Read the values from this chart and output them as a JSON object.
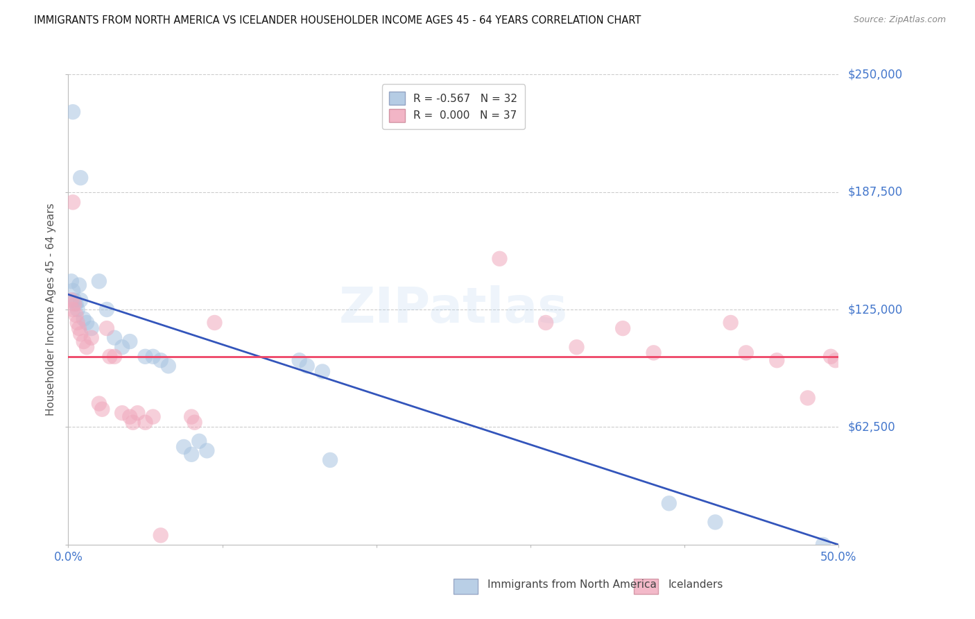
{
  "title": "IMMIGRANTS FROM NORTH AMERICA VS ICELANDER HOUSEHOLDER INCOME AGES 45 - 64 YEARS CORRELATION CHART",
  "source": "Source: ZipAtlas.com",
  "ylabel": "Householder Income Ages 45 - 64 years",
  "xlim": [
    0.0,
    0.5
  ],
  "ylim": [
    0,
    250000
  ],
  "yticks": [
    0,
    62500,
    125000,
    187500,
    250000
  ],
  "ytick_labels_right": [
    "",
    "$62,500",
    "$125,000",
    "$187,500",
    "$250,000"
  ],
  "xtick_positions": [
    0.0,
    0.1,
    0.2,
    0.3,
    0.4,
    0.5
  ],
  "xtick_labels": [
    "0.0%",
    "",
    "",
    "",
    "",
    "50.0%"
  ],
  "blue_r": -0.567,
  "blue_n": 32,
  "pink_r": 0.0,
  "pink_n": 37,
  "blue_dot_color": "#a8c4e0",
  "pink_dot_color": "#f0a8bc",
  "blue_line_color": "#3355bb",
  "pink_line_color": "#ee4466",
  "label_color": "#4477cc",
  "watermark": "ZIPatlas",
  "blue_points": [
    [
      0.003,
      230000
    ],
    [
      0.008,
      195000
    ],
    [
      0.002,
      140000
    ],
    [
      0.003,
      135000
    ],
    [
      0.004,
      130000
    ],
    [
      0.005,
      128000
    ],
    [
      0.006,
      125000
    ],
    [
      0.007,
      138000
    ],
    [
      0.008,
      130000
    ],
    [
      0.01,
      120000
    ],
    [
      0.012,
      118000
    ],
    [
      0.015,
      115000
    ],
    [
      0.02,
      140000
    ],
    [
      0.025,
      125000
    ],
    [
      0.03,
      110000
    ],
    [
      0.035,
      105000
    ],
    [
      0.04,
      108000
    ],
    [
      0.05,
      100000
    ],
    [
      0.055,
      100000
    ],
    [
      0.06,
      98000
    ],
    [
      0.065,
      95000
    ],
    [
      0.075,
      52000
    ],
    [
      0.08,
      48000
    ],
    [
      0.085,
      55000
    ],
    [
      0.09,
      50000
    ],
    [
      0.15,
      98000
    ],
    [
      0.155,
      95000
    ],
    [
      0.165,
      92000
    ],
    [
      0.17,
      45000
    ],
    [
      0.39,
      22000
    ],
    [
      0.42,
      12000
    ],
    [
      0.49,
      0
    ]
  ],
  "pink_points": [
    [
      0.003,
      182000
    ],
    [
      0.002,
      130000
    ],
    [
      0.003,
      125000
    ],
    [
      0.004,
      128000
    ],
    [
      0.005,
      122000
    ],
    [
      0.006,
      118000
    ],
    [
      0.007,
      115000
    ],
    [
      0.008,
      112000
    ],
    [
      0.01,
      108000
    ],
    [
      0.012,
      105000
    ],
    [
      0.015,
      110000
    ],
    [
      0.02,
      75000
    ],
    [
      0.022,
      72000
    ],
    [
      0.025,
      115000
    ],
    [
      0.027,
      100000
    ],
    [
      0.03,
      100000
    ],
    [
      0.035,
      70000
    ],
    [
      0.04,
      68000
    ],
    [
      0.042,
      65000
    ],
    [
      0.045,
      70000
    ],
    [
      0.05,
      65000
    ],
    [
      0.055,
      68000
    ],
    [
      0.06,
      5000
    ],
    [
      0.08,
      68000
    ],
    [
      0.082,
      65000
    ],
    [
      0.28,
      152000
    ],
    [
      0.31,
      118000
    ],
    [
      0.33,
      105000
    ],
    [
      0.36,
      115000
    ],
    [
      0.38,
      102000
    ],
    [
      0.43,
      118000
    ],
    [
      0.44,
      102000
    ],
    [
      0.46,
      98000
    ],
    [
      0.48,
      78000
    ],
    [
      0.495,
      100000
    ],
    [
      0.498,
      98000
    ],
    [
      0.095,
      118000
    ]
  ],
  "grid_color": "#cccccc",
  "background_color": "#ffffff",
  "legend_blue_label": "R = -0.567   N = 32",
  "legend_pink_label": "R =  0.000   N = 37",
  "bottom_legend_blue": "Immigrants from North America",
  "bottom_legend_pink": "Icelanders",
  "pink_line_y": 100000,
  "blue_line_x0": 0.0,
  "blue_line_y0": 133000,
  "blue_line_x1": 0.5,
  "blue_line_y1": 0
}
